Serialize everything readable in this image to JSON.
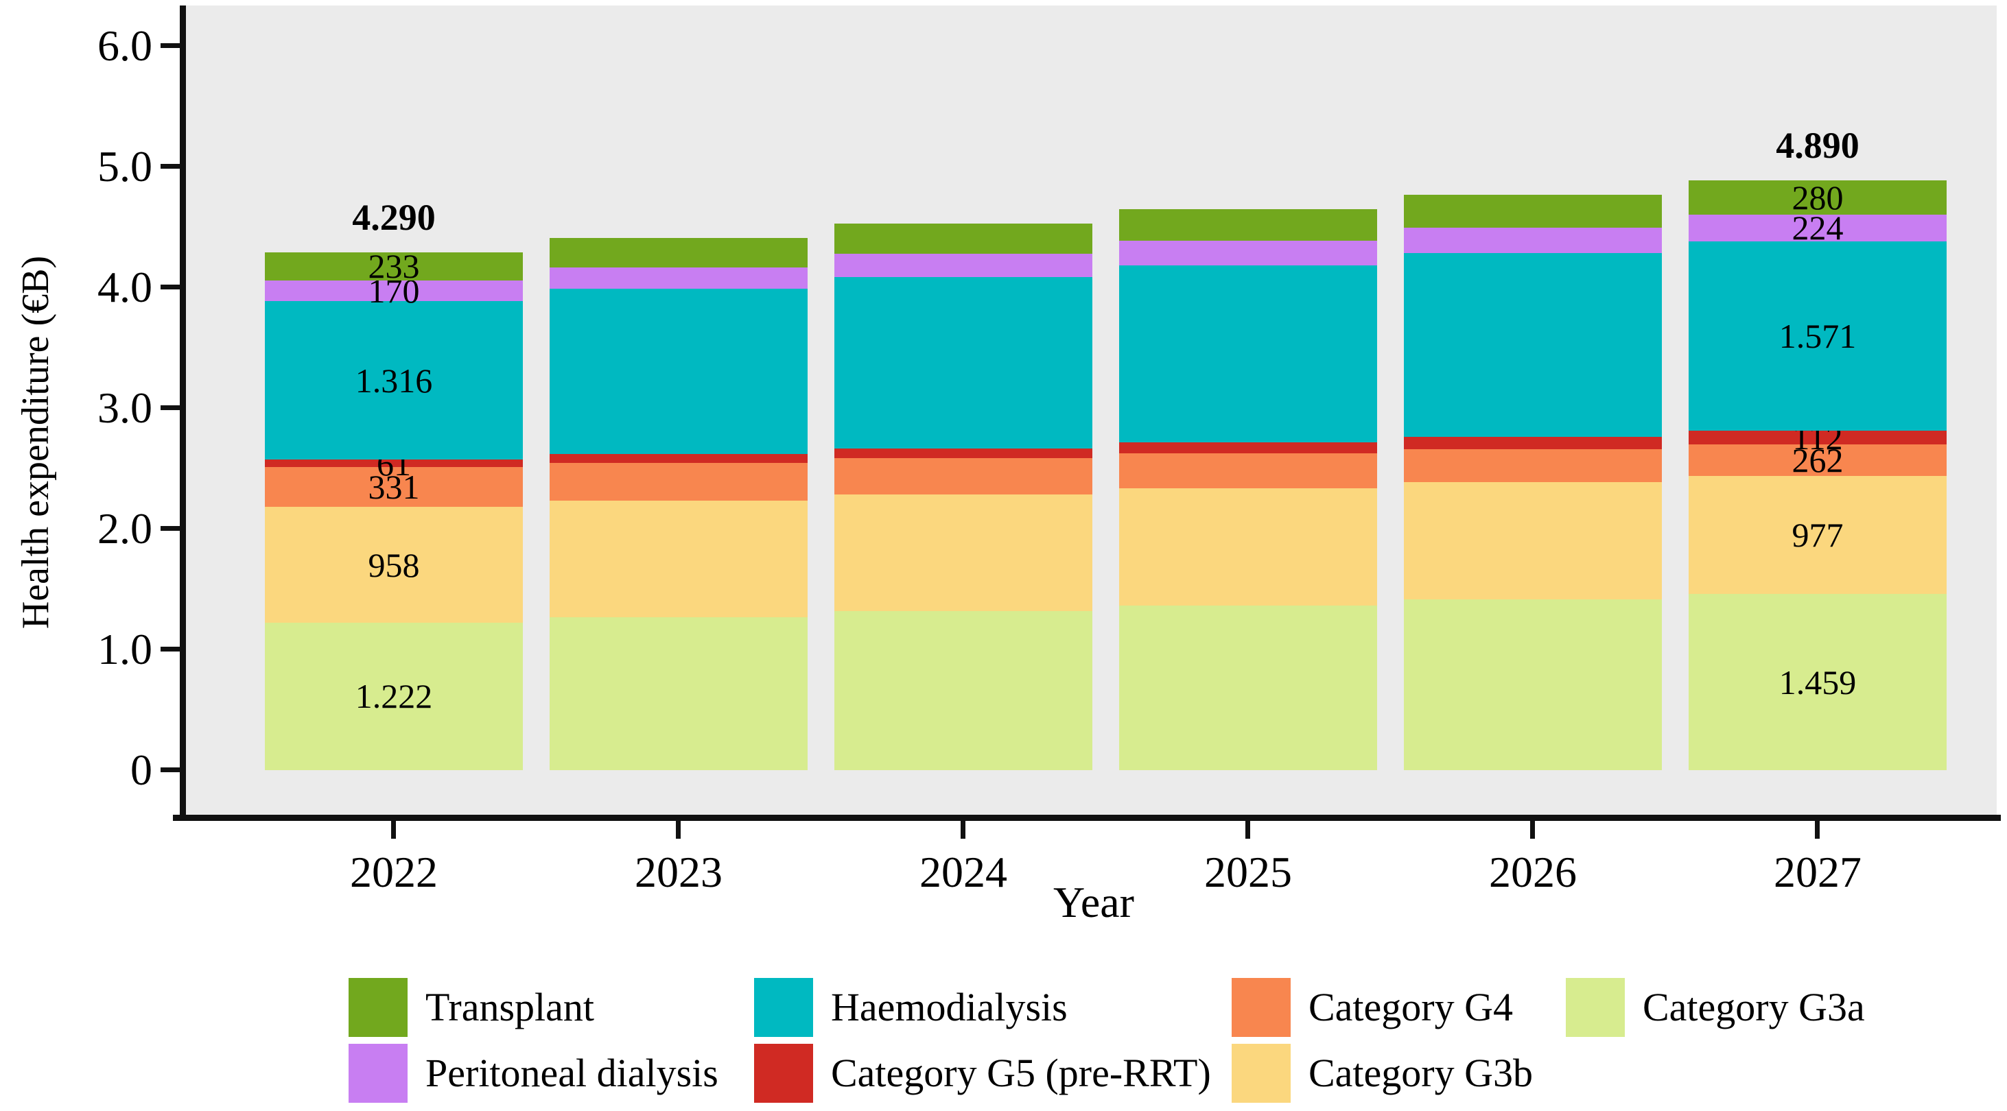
{
  "chart_data": {
    "type": "bar",
    "stacked": true,
    "title": "",
    "xlabel": "Year",
    "ylabel": "Health expenditure (€B)",
    "categories": [
      "2022",
      "2023",
      "2024",
      "2025",
      "2026",
      "2027"
    ],
    "ylim": [
      0,
      6.0
    ],
    "grid": false,
    "legend_position": "bottom",
    "plot_background": "#ebebeb",
    "y_ticks": [
      {
        "value": 0,
        "label": "0"
      },
      {
        "value": 1,
        "label": "1.0"
      },
      {
        "value": 2,
        "label": "2.0"
      },
      {
        "value": 3,
        "label": "3.0"
      },
      {
        "value": 4,
        "label": "4.0"
      },
      {
        "value": 5,
        "label": "5.0"
      },
      {
        "value": 6,
        "label": "6.0"
      }
    ],
    "series": [
      {
        "name": "Category G3a",
        "color": "#d7ec8f",
        "values": [
          1.222,
          1.269,
          1.317,
          1.364,
          1.412,
          1.459
        ],
        "labels": [
          "1.222",
          "",
          "",
          "",
          "",
          "1.459"
        ]
      },
      {
        "name": "Category G3b",
        "color": "#fbd77e",
        "values": [
          0.958,
          0.962,
          0.966,
          0.969,
          0.973,
          0.977
        ],
        "labels": [
          "958",
          "",
          "",
          "",
          "",
          "977"
        ]
      },
      {
        "name": "Category G4",
        "color": "#f8864f",
        "values": [
          0.331,
          0.317,
          0.303,
          0.29,
          0.276,
          0.262
        ],
        "labels": [
          "331",
          "",
          "",
          "",
          "",
          "262"
        ]
      },
      {
        "name": "Category G5 (pre-RRT)",
        "color": "#d02a23",
        "values": [
          0.061,
          0.071,
          0.081,
          0.092,
          0.102,
          0.112
        ],
        "labels": [
          "61",
          "",
          "",
          "",
          "",
          "112"
        ]
      },
      {
        "name": "Haemodialysis",
        "color": "#00b9c1",
        "values": [
          1.316,
          1.367,
          1.418,
          1.469,
          1.52,
          1.571
        ],
        "labels": [
          "1.316",
          "",
          "",
          "",
          "",
          "1.571"
        ]
      },
      {
        "name": "Peritoneal dialysis",
        "color": "#c87ef2",
        "values": [
          0.17,
          0.181,
          0.192,
          0.202,
          0.213,
          0.224
        ],
        "labels": [
          "170",
          "",
          "",
          "",
          "",
          "224"
        ]
      },
      {
        "name": "Transplant",
        "color": "#72a81e",
        "values": [
          0.233,
          0.242,
          0.252,
          0.261,
          0.271,
          0.28
        ],
        "labels": [
          "233",
          "",
          "",
          "",
          "",
          "280"
        ]
      }
    ],
    "totals": [
      "4.290",
      "",
      "",
      "",
      "",
      "4.890"
    ]
  },
  "legend": {
    "items": [
      {
        "label": "Transplant",
        "series": "Transplant",
        "col": 0,
        "row": 0
      },
      {
        "label": "Peritoneal dialysis",
        "series": "Peritoneal dialysis",
        "col": 0,
        "row": 1
      },
      {
        "label": "Haemodialysis",
        "series": "Haemodialysis",
        "col": 1,
        "row": 0
      },
      {
        "label": "Category G5 (pre-RRT)",
        "series": "Category G5 (pre-RRT)",
        "col": 1,
        "row": 1
      },
      {
        "label": "Category G4",
        "series": "Category G4",
        "col": 2,
        "row": 0
      },
      {
        "label": "Category G3b",
        "series": "Category G3b",
        "col": 2,
        "row": 1
      },
      {
        "label": "Category G3a",
        "series": "Category G3a",
        "col": 3,
        "row": 0
      }
    ]
  }
}
